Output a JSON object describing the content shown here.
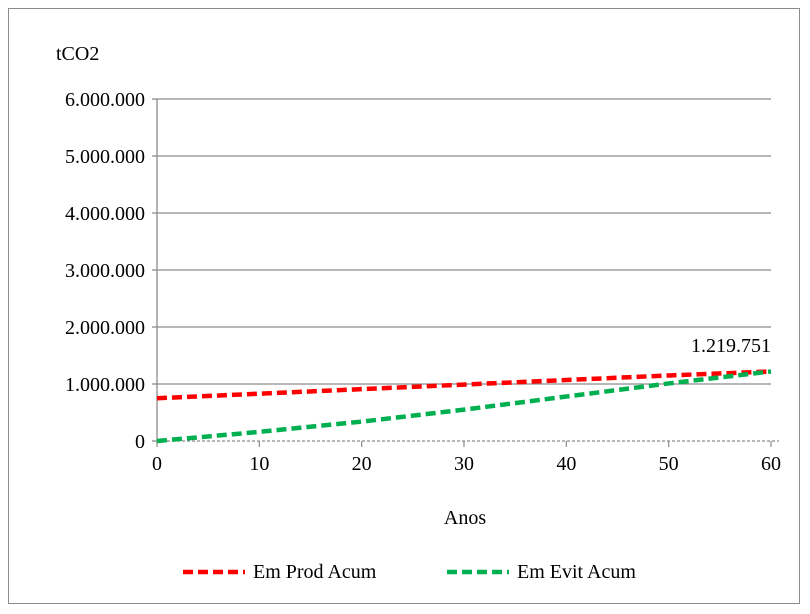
{
  "chart_data": {
    "type": "line",
    "ylabel": "tCO2",
    "xlabel": "Anos",
    "xlim": [
      0,
      60
    ],
    "ylim": [
      0,
      6000000
    ],
    "x_ticks": [
      0,
      10,
      20,
      30,
      40,
      50,
      60
    ],
    "x_tick_labels": [
      "0",
      "10",
      "20",
      "30",
      "40",
      "50",
      "60"
    ],
    "y_ticks": [
      0,
      1000000,
      2000000,
      3000000,
      4000000,
      5000000,
      6000000
    ],
    "y_tick_labels": [
      "0",
      "1.000.000",
      "2.000.000",
      "3.000.000",
      "4.000.000",
      "5.000.000",
      "6.000.000"
    ],
    "grid": "horizontal",
    "legend_position": "bottom",
    "annotation": "1.219.751",
    "series": [
      {
        "name": "Em Prod Acum",
        "color": "#ff0000",
        "style": "dashed",
        "x": [
          0,
          10,
          20,
          30,
          40,
          50,
          60
        ],
        "y": [
          750000,
          830000,
          910000,
          990000,
          1070000,
          1150000,
          1219751
        ]
      },
      {
        "name": "Em Evit Acum",
        "color": "#00b050",
        "style": "dashed",
        "x": [
          0,
          10,
          20,
          30,
          40,
          50,
          60
        ],
        "y": [
          0,
          160000,
          340000,
          550000,
          780000,
          1010000,
          1219751
        ]
      }
    ]
  }
}
